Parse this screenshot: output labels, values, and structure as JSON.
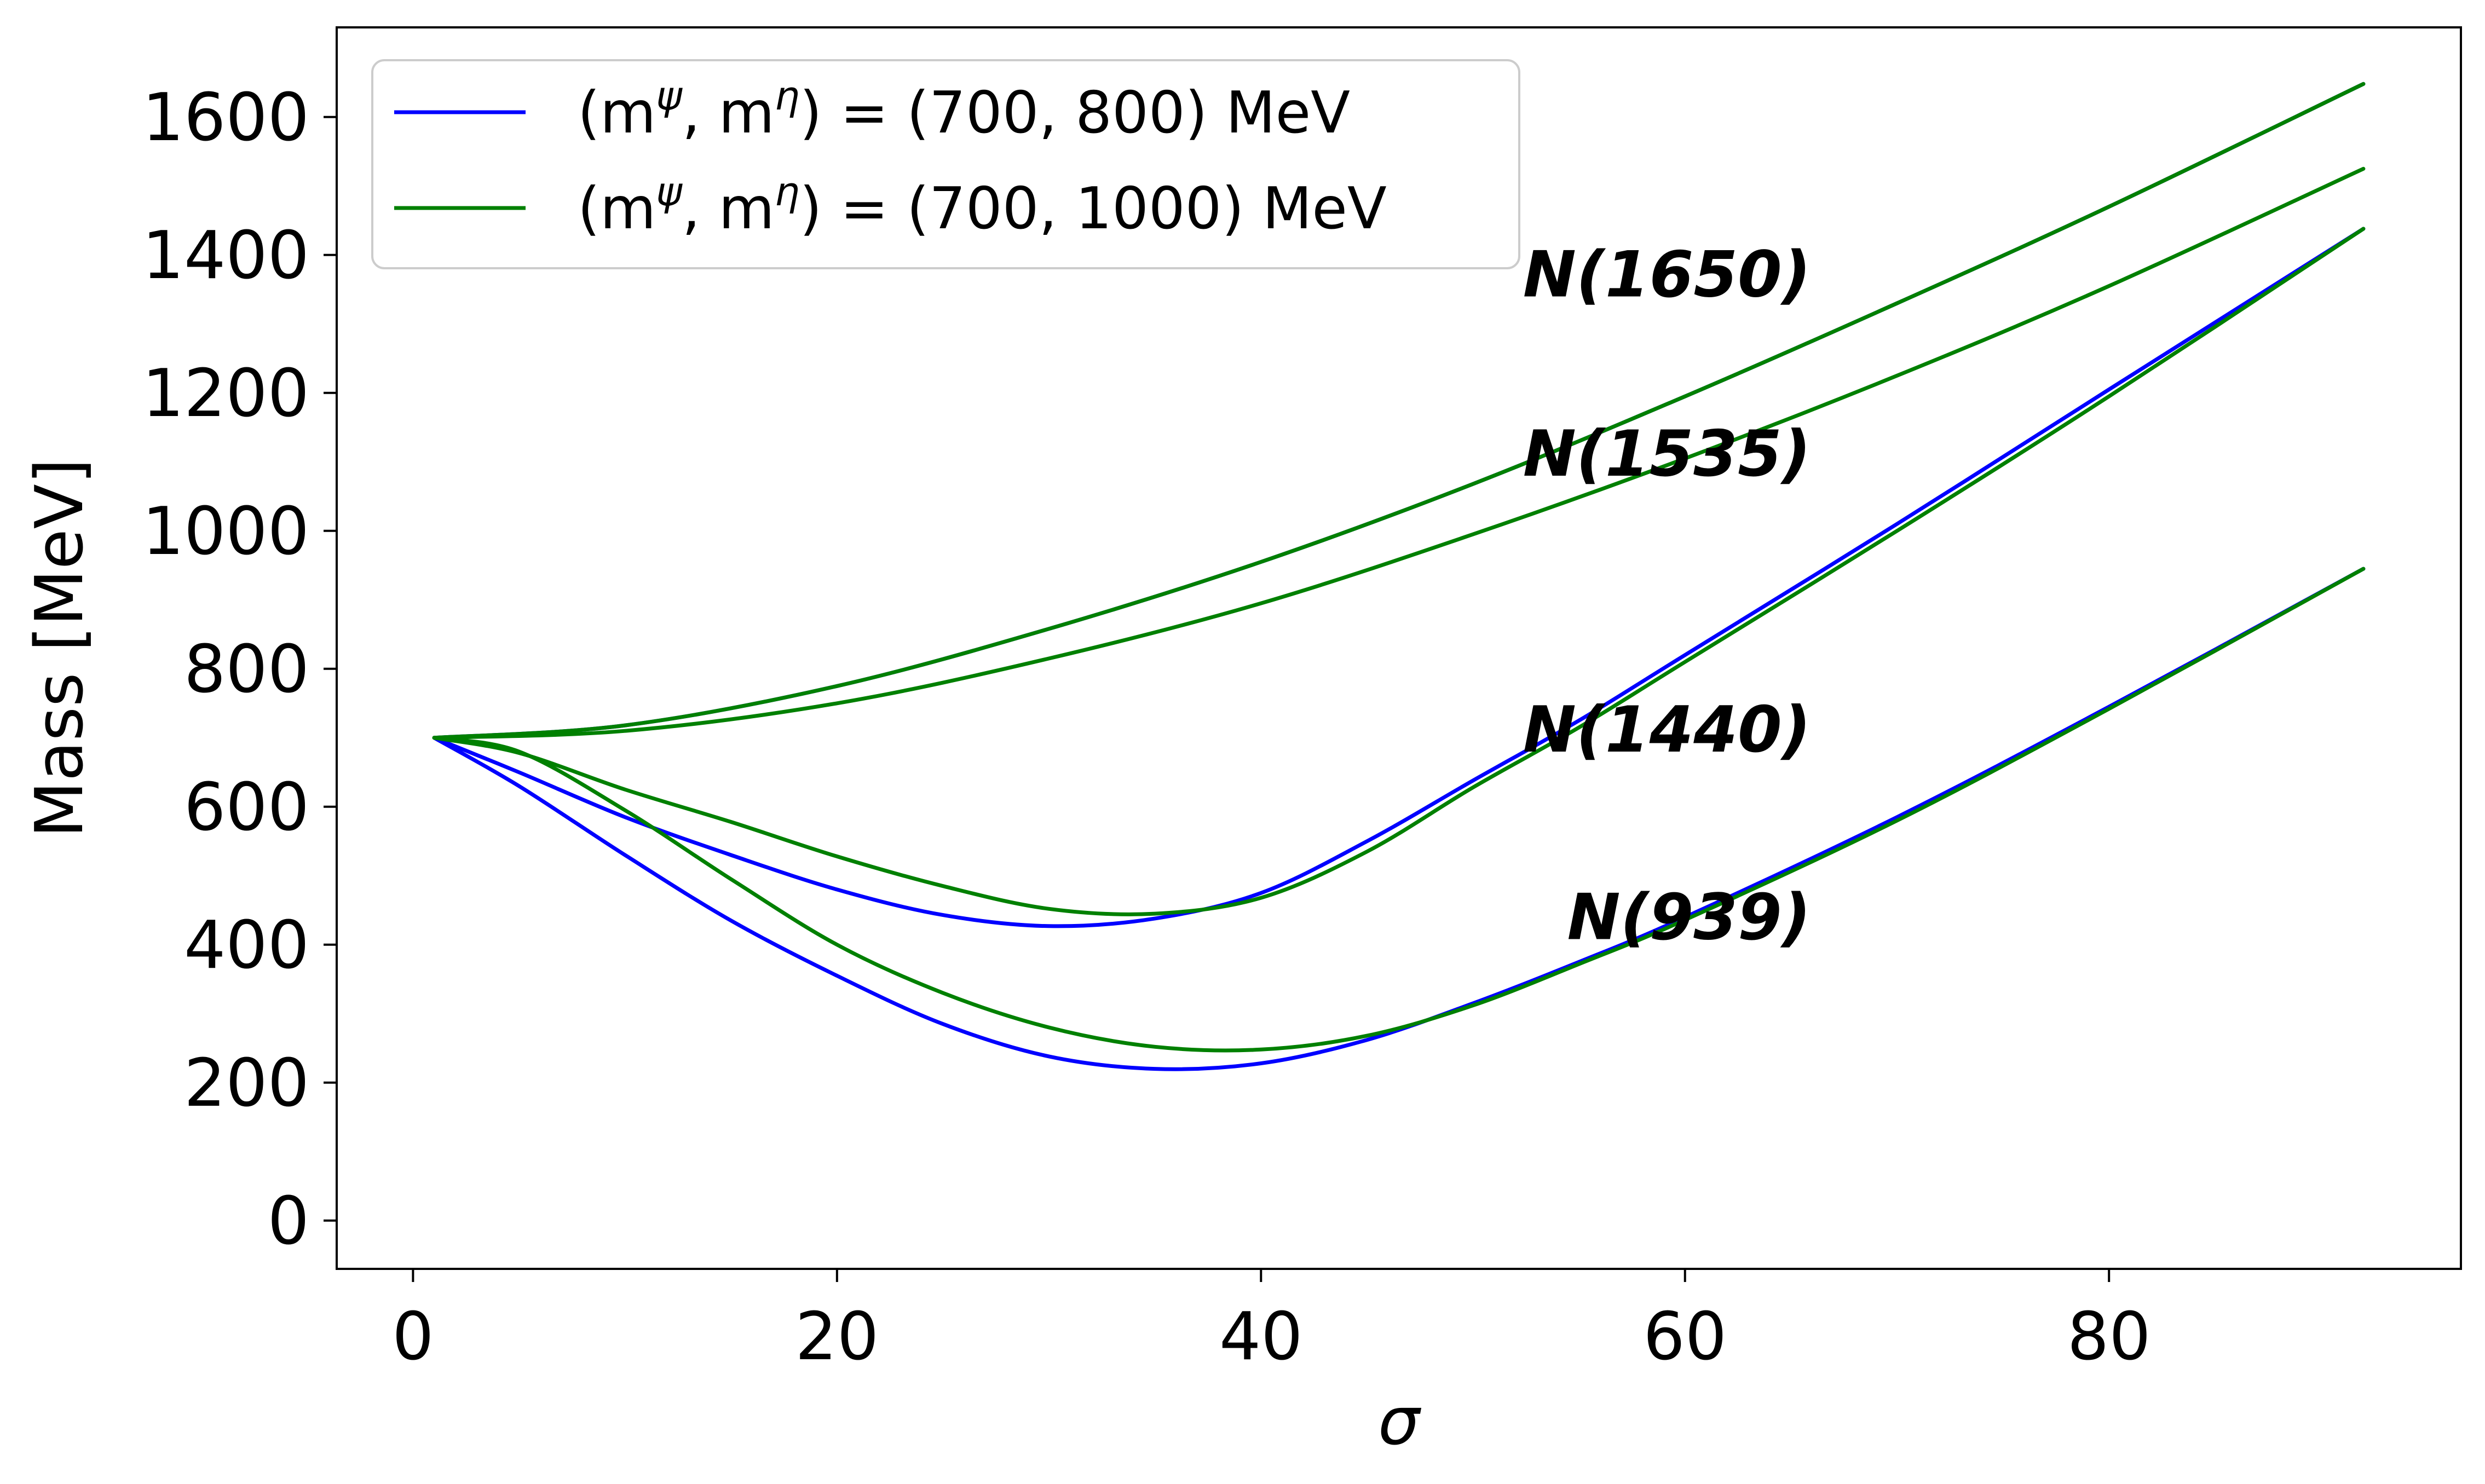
{
  "chart_data": {
    "type": "line",
    "title": "",
    "xlabel": "σ",
    "ylabel": "Mass [MeV]",
    "xlim": [
      -3.6,
      96.6
    ],
    "ylim": [
      -70,
      1730
    ],
    "xticks": [
      0,
      20,
      40,
      60,
      80
    ],
    "yticks": [
      0,
      200,
      400,
      600,
      800,
      1000,
      1200,
      1400,
      1600
    ],
    "grid": false,
    "legend_position": "top-left",
    "legend": [
      {
        "label": "(m",
        "sup1": "ψ",
        "mid": ", m",
        "sup2": "η",
        "tail": ") = (700, 800) MeV",
        "color": "#0000ff"
      },
      {
        "label": "(m",
        "sup1": "ψ",
        "mid": ", m",
        "sup2": "η",
        "tail": ") = (700, 1000) MeV",
        "color": "#008000"
      }
    ],
    "annotations": [
      {
        "text": "N(1650)",
        "x": 60,
        "y": 1340
      },
      {
        "text": "N(1535)",
        "x": 60,
        "y": 1080
      },
      {
        "text": "N(1440)",
        "x": 60,
        "y": 680
      },
      {
        "text": "N(939)",
        "x": 60,
        "y": 408
      }
    ],
    "series": [
      {
        "name": "(700, 800) MeV — N(1650)",
        "group": 0,
        "color": "#0000ff",
        "x": [
          1,
          10,
          20,
          30,
          40,
          50,
          60,
          70,
          80,
          92
        ],
        "y": [
          700,
          718,
          775,
          858,
          955,
          1068,
          1195,
          1330,
          1470,
          1648
        ]
      },
      {
        "name": "(700, 800) MeV — N(1440)",
        "group": 0,
        "color": "#0000ff",
        "x": [
          1,
          5,
          10,
          15,
          20,
          25,
          30,
          35,
          40,
          45,
          50,
          55,
          60,
          70,
          80,
          92
        ],
        "y": [
          700,
          650,
          585,
          530,
          480,
          443,
          427,
          438,
          475,
          550,
          638,
          725,
          820,
          1010,
          1205,
          1438
        ]
      },
      {
        "name": "(700, 800) MeV — N(939)",
        "group": 0,
        "color": "#0000ff",
        "x": [
          1,
          5,
          10,
          15,
          20,
          25,
          30,
          35,
          40,
          45,
          50,
          55,
          60,
          70,
          80,
          92
        ],
        "y": [
          700,
          630,
          530,
          435,
          355,
          285,
          238,
          220,
          228,
          262,
          315,
          375,
          440,
          585,
          745,
          945
        ]
      },
      {
        "name": "(700, 1000) MeV — N(1650)",
        "group": 1,
        "color": "#008000",
        "x": [
          1,
          10,
          20,
          30,
          40,
          50,
          60,
          70,
          80,
          92
        ],
        "y": [
          700,
          718,
          775,
          858,
          955,
          1068,
          1195,
          1330,
          1470,
          1648
        ]
      },
      {
        "name": "(700, 1000) MeV — N(1535)",
        "group": 1,
        "color": "#008000",
        "x": [
          1,
          10,
          20,
          30,
          40,
          50,
          60,
          70,
          80,
          92
        ],
        "y": [
          700,
          710,
          750,
          815,
          895,
          995,
          1105,
          1225,
          1355,
          1525
        ]
      },
      {
        "name": "(700, 1000) MeV — N(1440)",
        "group": 1,
        "color": "#008000",
        "x": [
          1,
          5,
          10,
          15,
          20,
          25,
          30,
          35,
          40,
          45,
          50,
          55,
          60,
          70,
          80,
          92
        ],
        "y": [
          700,
          678,
          625,
          578,
          528,
          485,
          452,
          445,
          468,
          535,
          628,
          715,
          810,
          1000,
          1195,
          1438
        ]
      },
      {
        "name": "(700, 1000) MeV — N(939)",
        "group": 1,
        "color": "#008000",
        "x": [
          1,
          5,
          10,
          15,
          20,
          25,
          30,
          35,
          40,
          45,
          50,
          55,
          60,
          70,
          80,
          92
        ],
        "y": [
          700,
          680,
          595,
          495,
          400,
          330,
          280,
          252,
          248,
          268,
          312,
          372,
          436,
          580,
          742,
          945
        ]
      }
    ]
  }
}
